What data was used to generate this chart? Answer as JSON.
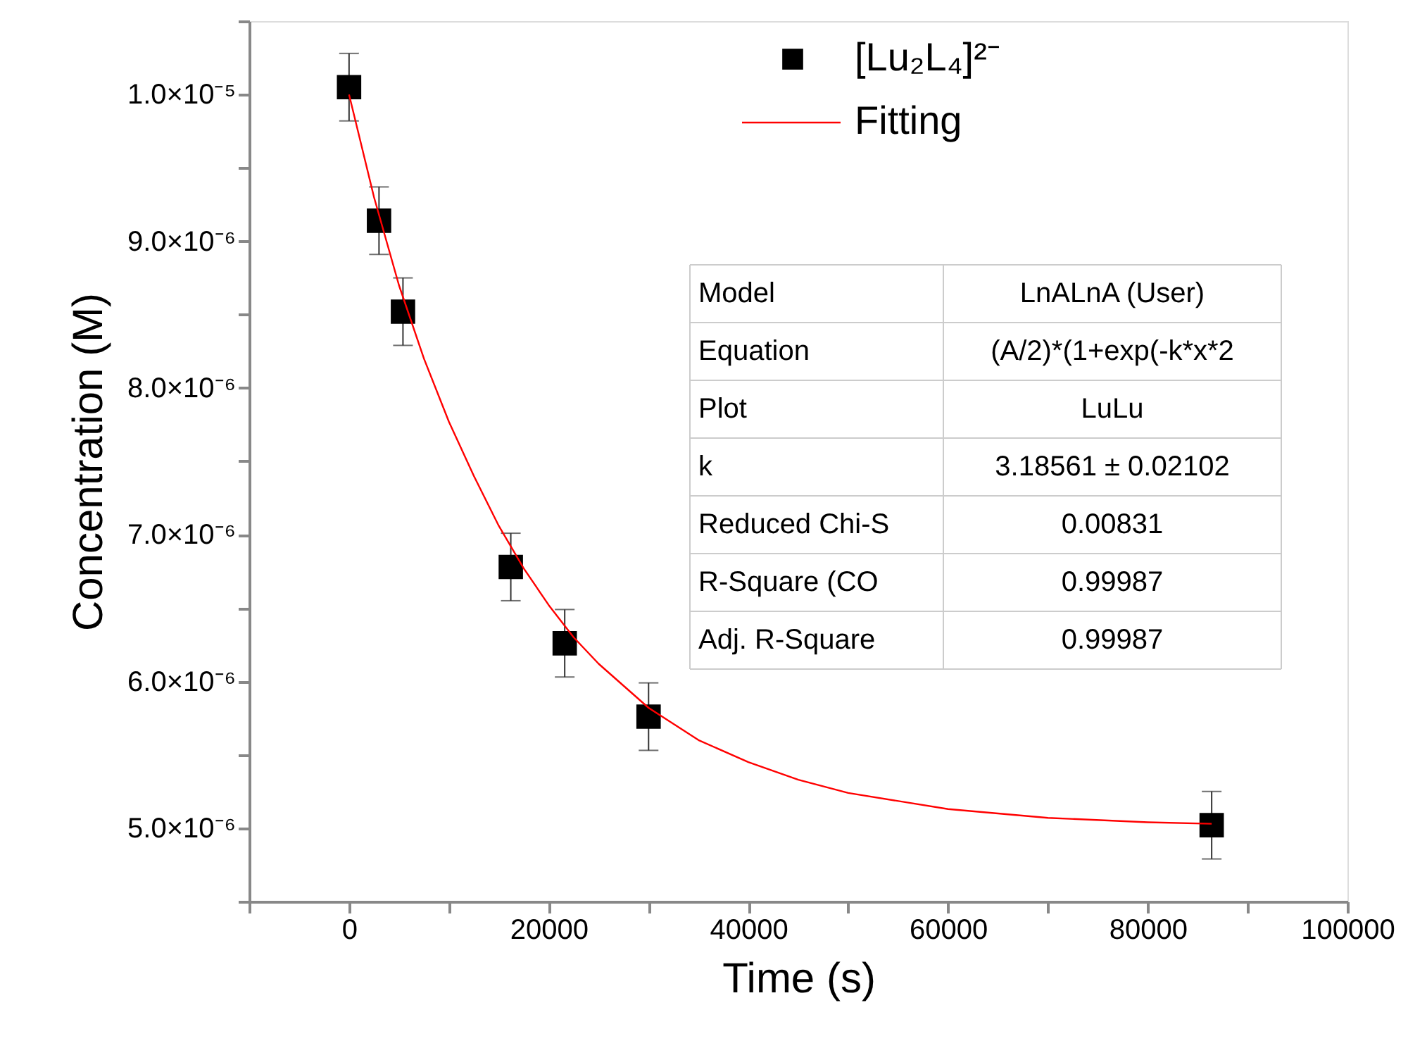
{
  "chart_data": {
    "type": "scatter",
    "xlabel": "Time (s)",
    "ylabel": "Concentration (M)",
    "xlim": [
      -10000,
      100000
    ],
    "xticks": [
      {
        "value": -10000,
        "label": null
      },
      0,
      {
        "value": 10000,
        "label": null
      },
      20000,
      {
        "value": 30000,
        "label": null
      },
      40000,
      {
        "value": 50000,
        "label": null
      },
      60000,
      {
        "value": 70000,
        "label": null
      },
      80000,
      {
        "value": 90000,
        "label": null
      },
      100000
    ],
    "ylim": [
      4.5e-06,
      1.05e-05
    ],
    "yticks": [
      {
        "value": 4.5e-06,
        "label": null
      },
      {
        "value": 5e-06,
        "label": "5.0×10⁻⁶"
      },
      {
        "value": 5.5e-06,
        "label": null
      },
      {
        "value": 6e-06,
        "label": "6.0×10⁻⁶"
      },
      {
        "value": 6.5e-06,
        "label": null
      },
      {
        "value": 7e-06,
        "label": "7.0×10⁻⁶"
      },
      {
        "value": 7.5e-06,
        "label": null
      },
      {
        "value": 8e-06,
        "label": "8.0×10⁻⁶"
      },
      {
        "value": 8.5e-06,
        "label": null
      },
      {
        "value": 9e-06,
        "label": "9.0×10⁻⁶"
      },
      {
        "value": 9.5e-06,
        "label": null
      },
      {
        "value": 1e-05,
        "label": "1.0×10⁻⁵"
      },
      {
        "value": 1.05e-05,
        "label": null
      }
    ],
    "legend": "top",
    "series": [
      {
        "name": "[Lu₂L₄]²⁻",
        "marker": "square",
        "color": "#000000",
        "x": [
          0,
          3000,
          5400,
          16200,
          21600,
          30000,
          86400
        ],
        "values": [
          1.005e-05,
          9.14e-06,
          8.52e-06,
          6.78e-06,
          6.26e-06,
          5.76e-06,
          5.02e-06
        ],
        "errors": [
          2.3e-07,
          2.3e-07,
          2.3e-07,
          2.3e-07,
          2.3e-07,
          2.3e-07,
          2.3e-07
        ]
      },
      {
        "name": "Fitting",
        "type": "line",
        "marker": "none",
        "line_style": "solid",
        "color": "#ff0000",
        "x": [
          0,
          2500,
          5000,
          7500,
          10000,
          12500,
          15000,
          17500,
          20000,
          22500,
          25000,
          30000,
          35000,
          40000,
          45000,
          50000,
          60000,
          70000,
          80000,
          86400
        ],
        "values": [
          1e-05,
          9.3e-06,
          8.7e-06,
          8.2e-06,
          7.77e-06,
          7.4e-06,
          7.06e-06,
          6.77e-06,
          6.52e-06,
          6.3e-06,
          6.12e-06,
          5.82e-06,
          5.6e-06,
          5.45e-06,
          5.33e-06,
          5.24e-06,
          5.13e-06,
          5.07e-06,
          5.04e-06,
          5.03e-06
        ]
      }
    ],
    "annotations": [
      "Model",
      "LnALnA (User)",
      "Equation",
      "(A/2)*(1+exp(-k*x*2",
      "Plot",
      "LuLu",
      "k",
      "3.18561 ± 0.02102",
      "Reduced Chi-S",
      "0.00831",
      "R-Square (CO",
      "0.99987",
      "Adj. R-Square",
      "0.99987"
    ]
  }
}
